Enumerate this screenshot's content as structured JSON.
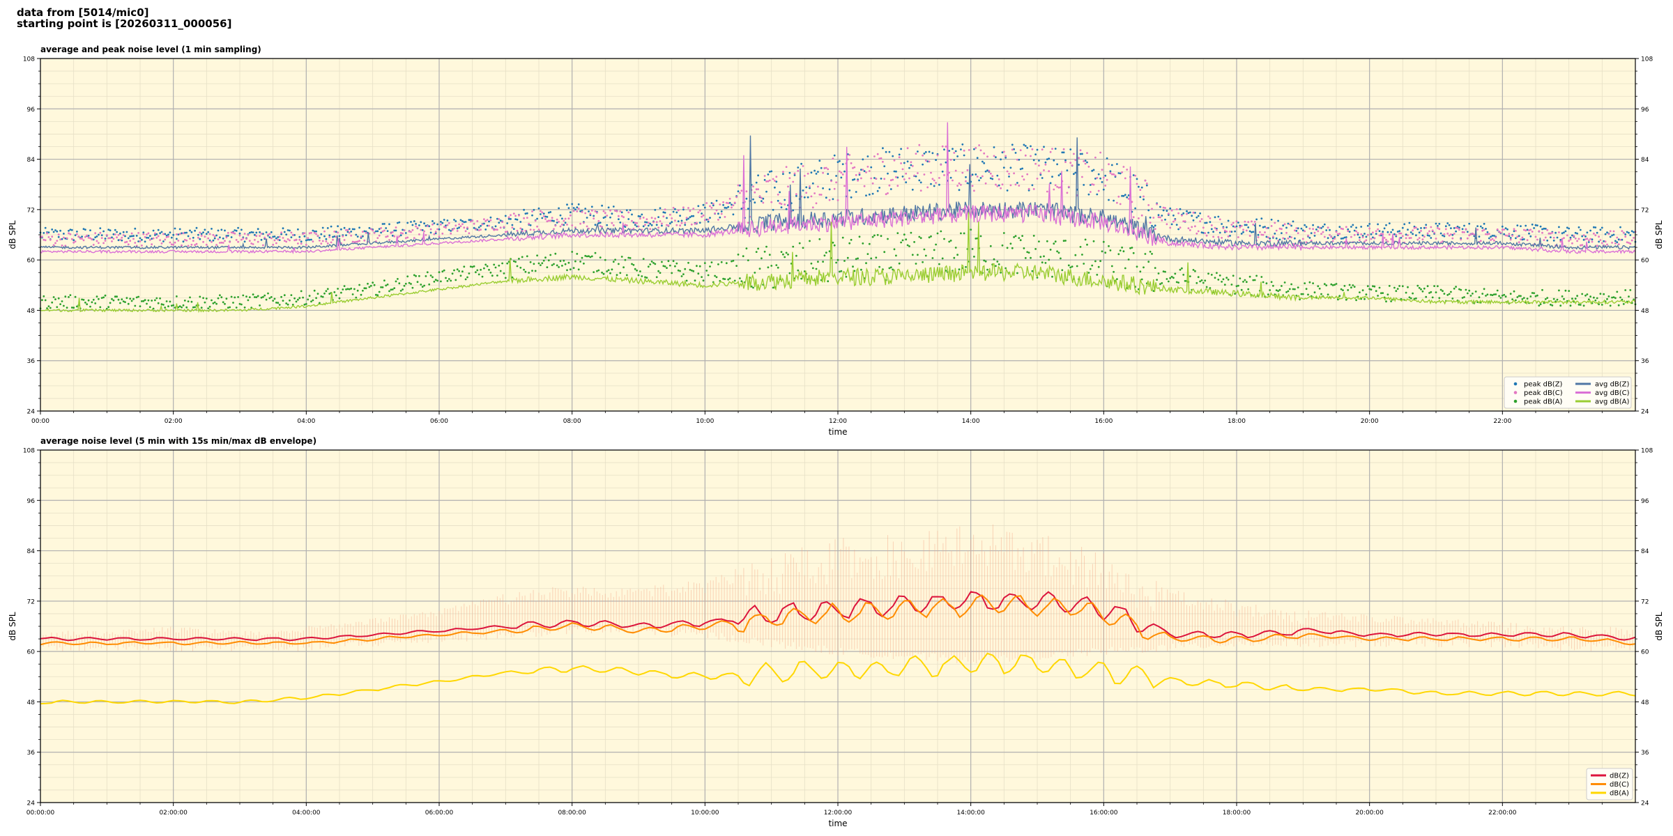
{
  "header": {
    "line1": "data from [5014/mic0]",
    "line2": "starting point is [20260311_000056]"
  },
  "chart_data": [
    {
      "type": "line",
      "title": "average and peak noise level (1 min sampling)",
      "xlabel": "time",
      "ylabel": "dB SPL",
      "ylabel_right": "dB SPL",
      "xlim": [
        0,
        24
      ],
      "ylim": [
        24,
        108
      ],
      "yticks": [
        24,
        36,
        48,
        60,
        72,
        84,
        96,
        108
      ],
      "xtick_labels": [
        "00:00",
        "02:00",
        "04:00",
        "06:00",
        "08:00",
        "10:00",
        "12:00",
        "14:00",
        "16:00",
        "18:00",
        "20:00",
        "22:00"
      ],
      "grid": true,
      "background": "#fff8dc",
      "legend_position": "lower-right",
      "legend_columns": 2,
      "series": [
        {
          "name": "peak dB(Z)",
          "kind": "scatter",
          "color": "#1f77b4",
          "x": [
            0,
            1,
            2,
            3,
            4,
            5,
            6,
            7,
            8,
            9,
            10,
            11,
            12,
            13,
            14,
            15,
            16,
            17,
            18,
            19,
            20,
            21,
            22,
            23,
            24
          ],
          "y": [
            66,
            66,
            66,
            66,
            66,
            67,
            68,
            69,
            71,
            70,
            71,
            76,
            80,
            82,
            82,
            82,
            80,
            70,
            68,
            67,
            67,
            67,
            67,
            66,
            66
          ]
        },
        {
          "name": "peak dB(C)",
          "kind": "scatter",
          "color": "#e377c2",
          "x": [
            0,
            1,
            2,
            3,
            4,
            5,
            6,
            7,
            8,
            9,
            10,
            11,
            12,
            13,
            14,
            15,
            16,
            17,
            18,
            19,
            20,
            21,
            22,
            23,
            24
          ],
          "y": [
            65,
            65,
            65,
            65,
            65,
            66,
            67,
            69,
            70,
            69,
            71,
            76,
            79,
            82,
            82,
            82,
            80,
            70,
            67,
            66,
            66,
            66,
            66,
            65,
            65
          ]
        },
        {
          "name": "peak dB(A)",
          "kind": "scatter",
          "color": "#2ca02c",
          "x": [
            0,
            1,
            2,
            3,
            4,
            5,
            6,
            7,
            8,
            9,
            10,
            11,
            12,
            13,
            14,
            15,
            16,
            17,
            18,
            19,
            20,
            21,
            22,
            23,
            24
          ],
          "y": [
            50,
            50,
            50,
            50,
            51,
            53,
            56,
            58,
            60,
            58,
            57,
            58,
            60,
            61,
            62,
            61,
            59,
            56,
            54,
            53,
            52,
            52,
            51,
            51,
            51
          ]
        },
        {
          "name": "avg dB(Z)",
          "kind": "line",
          "color": "#4f76a4",
          "x": [
            0,
            1,
            2,
            3,
            4,
            5,
            6,
            7,
            8,
            9,
            10,
            11,
            12,
            13,
            14,
            15,
            16,
            17,
            18,
            19,
            20,
            21,
            22,
            23,
            24
          ],
          "y": [
            63,
            63,
            63,
            63,
            63,
            64,
            65,
            66,
            67,
            67,
            67,
            69,
            70,
            71,
            72,
            72,
            70,
            65,
            64,
            64,
            64,
            64,
            64,
            63,
            63
          ]
        },
        {
          "name": "avg dB(C)",
          "kind": "line",
          "color": "#da70d6",
          "x": [
            0,
            1,
            2,
            3,
            4,
            5,
            6,
            7,
            8,
            9,
            10,
            11,
            12,
            13,
            14,
            15,
            16,
            17,
            18,
            19,
            20,
            21,
            22,
            23,
            24
          ],
          "y": [
            62,
            62,
            62,
            62,
            62,
            63,
            64,
            65,
            66,
            66,
            66,
            68,
            69,
            70,
            71,
            71,
            69,
            64,
            63,
            63,
            63,
            63,
            63,
            62,
            62
          ]
        },
        {
          "name": "avg dB(A)",
          "kind": "line",
          "color": "#9acd32",
          "x": [
            0,
            1,
            2,
            3,
            4,
            5,
            6,
            7,
            8,
            9,
            10,
            11,
            12,
            13,
            14,
            15,
            16,
            17,
            18,
            19,
            20,
            21,
            22,
            23,
            24
          ],
          "y": [
            48,
            48,
            48,
            48,
            49,
            51,
            53,
            55,
            56,
            55,
            54,
            55,
            56,
            56,
            57,
            57,
            55,
            53,
            52,
            51,
            51,
            50,
            50,
            50,
            50
          ]
        }
      ]
    },
    {
      "type": "line",
      "title": "average noise level (5 min with 15s min/max dB envelope)",
      "xlabel": "time",
      "ylabel": "dB SPL",
      "ylabel_right": "dB SPL",
      "xlim": [
        0,
        24
      ],
      "ylim": [
        24,
        108
      ],
      "yticks": [
        24,
        36,
        48,
        60,
        72,
        84,
        96,
        108
      ],
      "xtick_labels": [
        "00:00:00",
        "02:00:00",
        "04:00:00",
        "06:00:00",
        "08:00:00",
        "10:00:00",
        "12:00:00",
        "14:00:00",
        "16:00:00",
        "18:00:00",
        "20:00:00",
        "22:00:00"
      ],
      "grid": true,
      "background": "#fff8dc",
      "legend_position": "lower-right",
      "envelope": {
        "color": "#f4a582",
        "x": [
          0,
          1,
          2,
          3,
          4,
          5,
          6,
          7,
          8,
          9,
          10,
          11,
          12,
          13,
          14,
          15,
          16,
          17,
          18,
          19,
          20,
          21,
          22,
          23,
          24
        ],
        "min": [
          61,
          61,
          61,
          61,
          61,
          62,
          63,
          64,
          65,
          65,
          64,
          62,
          60,
          59,
          58,
          59,
          60,
          61,
          62,
          62,
          62,
          62,
          62,
          61,
          61
        ],
        "max": [
          65,
          65,
          66,
          65,
          66,
          68,
          70,
          74,
          76,
          76,
          77,
          83,
          87,
          88,
          91,
          89,
          84,
          75,
          72,
          70,
          69,
          68,
          67,
          66,
          66
        ]
      },
      "series": [
        {
          "name": "dB(Z)",
          "kind": "line",
          "color": "#dc143c",
          "x": [
            0,
            1,
            2,
            3,
            4,
            5,
            6,
            7,
            8,
            9,
            10,
            11,
            12,
            13,
            14,
            15,
            16,
            17,
            18,
            19,
            20,
            21,
            22,
            23,
            24
          ],
          "y": [
            63,
            63,
            63,
            63,
            63,
            64,
            65,
            66,
            67,
            66,
            67,
            69,
            70,
            71,
            72,
            72,
            70,
            64,
            64,
            65,
            64,
            64,
            64,
            64,
            63
          ]
        },
        {
          "name": "dB(C)",
          "kind": "line",
          "color": "#ff8c00",
          "x": [
            0,
            1,
            2,
            3,
            4,
            5,
            6,
            7,
            8,
            9,
            10,
            11,
            12,
            13,
            14,
            15,
            16,
            17,
            18,
            19,
            20,
            21,
            22,
            23,
            24
          ],
          "y": [
            62,
            62,
            62,
            62,
            62,
            63,
            64,
            65,
            66,
            65,
            66,
            68,
            69,
            70,
            71,
            71,
            69,
            63,
            63,
            64,
            63,
            63,
            63,
            63,
            62
          ]
        },
        {
          "name": "dB(A)",
          "kind": "line",
          "color": "#ffd700",
          "x": [
            0,
            1,
            2,
            3,
            4,
            5,
            6,
            7,
            8,
            9,
            10,
            11,
            12,
            13,
            14,
            15,
            16,
            17,
            18,
            19,
            20,
            21,
            22,
            23,
            24
          ],
          "y": [
            48,
            48,
            48,
            48,
            49,
            51,
            53,
            55,
            56,
            55,
            54,
            55,
            56,
            56,
            57,
            57,
            55,
            53,
            52,
            51,
            51,
            50,
            50,
            50,
            50
          ]
        }
      ]
    }
  ]
}
